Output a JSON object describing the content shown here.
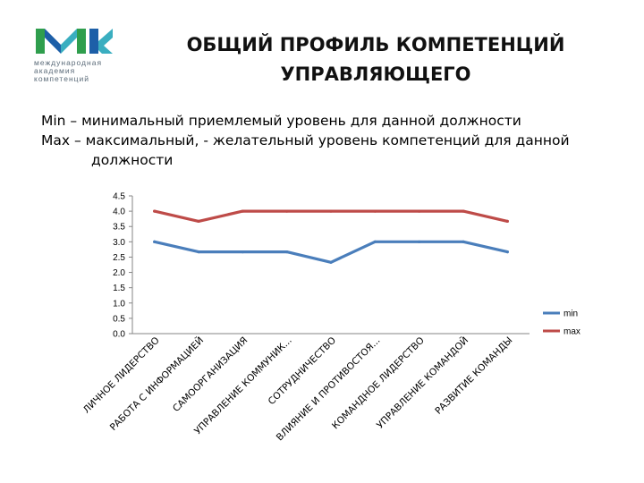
{
  "logo": {
    "lines": [
      "международная",
      "академия",
      "компетенций"
    ],
    "colors": {
      "green": "#2f9e4d",
      "blue": "#1d5fa8",
      "teal": "#3aaec0"
    }
  },
  "title": {
    "line1": "ОБЩИЙ ПРОФИЛЬ КОМПЕТЕНЦИЙ",
    "line2": "УПРАВЛЯЮЩЕГО"
  },
  "description": {
    "min_line": "Min – минимальный приемлемый уровень для данной должности",
    "max_line": "Max – максимальный, - желательный уровень компетенций для данной",
    "max_line_cont": "должности"
  },
  "chart_data": {
    "type": "line",
    "categories": [
      "ЛИЧНОЕ ЛИДЕРСТВО",
      "РАБОТА С ИНФОРМАЦИЕЙ",
      "САМООРГАНИЗАЦИЯ",
      "УПРАВЛЕНИЕ КОММУНИК...",
      "СОТРУДНИЧЕСТВО",
      "ВЛИЯНИЕ И ПРОТИВОСТОЯ...",
      "КОМАНДНОЕ ЛИДЕРСТВО",
      "УПРАВЛЕНИЕ КОМАНДОЙ",
      "РАЗВИТИЕ КОМАНДЫ"
    ],
    "series": [
      {
        "name": "min",
        "color": "#4a7ebb",
        "values": [
          3.0,
          2.67,
          2.67,
          2.67,
          2.33,
          3.0,
          3.0,
          3.0,
          2.67
        ]
      },
      {
        "name": "max",
        "color": "#be4b48",
        "values": [
          4.0,
          3.67,
          4.0,
          4.0,
          4.0,
          4.0,
          4.0,
          4.0,
          3.67
        ]
      }
    ],
    "y_ticks": [
      "0.0",
      "0.5",
      "1.0",
      "1.5",
      "2.0",
      "2.5",
      "3.0",
      "3.5",
      "4.0",
      "4.5"
    ],
    "ylim": [
      0,
      4.5
    ],
    "grid": false,
    "legend_position": "right"
  }
}
